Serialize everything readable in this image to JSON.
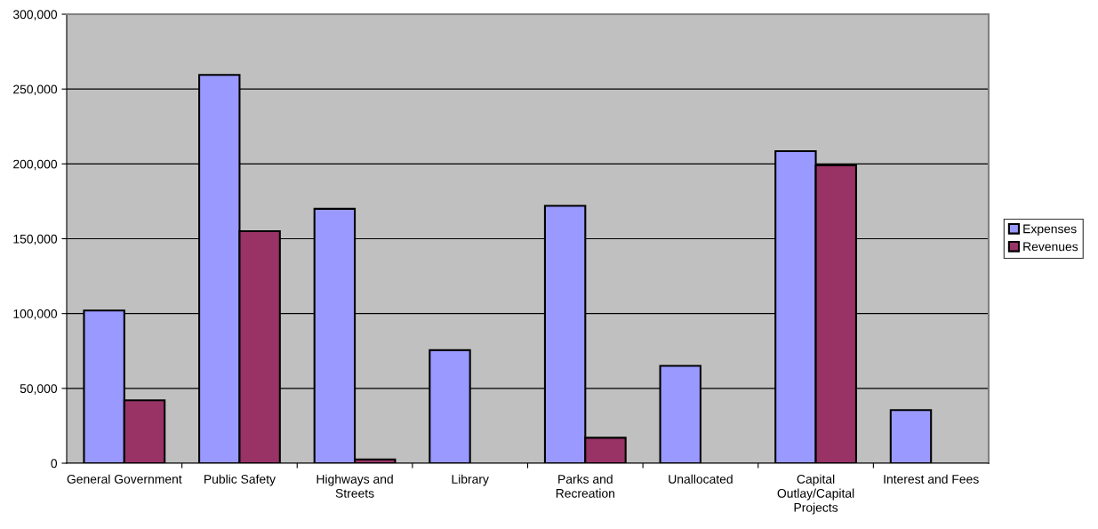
{
  "chart_data": {
    "type": "bar",
    "categories": [
      "General Government",
      "Public Safety",
      "Highways and Streets",
      "Library",
      "Parks and Recreation",
      "Unallocated",
      "Capital Outlay/Capital Projects",
      "Interest and Fees"
    ],
    "series": [
      {
        "name": "Expenses",
        "color": "#9999ff",
        "values": [
          102000,
          259500,
          170000,
          75500,
          172000,
          65000,
          208500,
          35500
        ]
      },
      {
        "name": "Revenues",
        "color": "#993366",
        "values": [
          42000,
          155000,
          2500,
          null,
          17000,
          null,
          199000,
          null
        ]
      }
    ],
    "ylim": [
      0,
      300000
    ],
    "yticks": [
      {
        "value": 0,
        "label": "0"
      },
      {
        "value": 50000,
        "label": "50,000"
      },
      {
        "value": 100000,
        "label": "100,000"
      },
      {
        "value": 150000,
        "label": "150,000"
      },
      {
        "value": 200000,
        "label": "200,000"
      },
      {
        "value": 250000,
        "label": "250,000"
      },
      {
        "value": 300000,
        "label": "300,000"
      }
    ],
    "grid": "y",
    "legend": "right"
  }
}
